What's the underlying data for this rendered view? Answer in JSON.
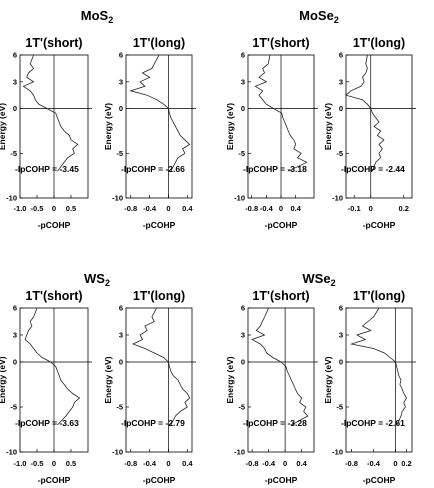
{
  "chart_data": {
    "type": "line",
    "y_axis_label": "Energy (eV)",
    "x_axis_label": "-pCOHP",
    "ylim": [
      -10,
      6
    ],
    "y_ticks": [
      "6",
      "3",
      "0",
      "-5",
      "-10"
    ],
    "materials": [
      {
        "name": "MoS",
        "subscript": "2",
        "panels": [
          {
            "title": "1T'(short)",
            "ipcohp_label": "-IpCOHP = -3.45",
            "xlim": [
              -1.0,
              1.0
            ],
            "x_ticks": [
              -1.0,
              -0.5,
              0,
              0.5
            ],
            "x_tick_labels": [
              "-1.0",
              "-0.5",
              "0",
              "0.5"
            ],
            "energy": [
              6,
              5,
              4.5,
              4,
              3.5,
              3,
              2.5,
              2,
              1.5,
              1,
              0.5,
              0,
              -0.5,
              -1,
              -1.5,
              -2,
              -2.5,
              -3,
              -3.5,
              -4,
              -4.5,
              -5,
              -5.5,
              -6,
              -7
            ],
            "pcohp": [
              -0.6,
              -0.7,
              -0.6,
              -0.75,
              -0.8,
              -0.6,
              -0.9,
              -0.7,
              -0.6,
              -0.55,
              -0.45,
              -0.2,
              0.05,
              0.1,
              0.15,
              0.2,
              0.3,
              0.45,
              0.5,
              0.7,
              0.55,
              0.6,
              0.4,
              0.3,
              0.1
            ]
          },
          {
            "title": "1T'(long)",
            "ipcohp_label": "-IpCOHP = -2.66",
            "xlim": [
              -0.9,
              0.5
            ],
            "x_ticks": [
              -0.8,
              -0.4,
              0,
              0.4
            ],
            "x_tick_labels": [
              "-0.8",
              "-0.4",
              "0",
              "0.4"
            ],
            "energy": [
              6,
              5,
              4.5,
              4,
              3.5,
              3,
              2.5,
              2,
              1.5,
              1,
              0.5,
              0,
              -0.5,
              -1,
              -1.5,
              -2,
              -2.5,
              -3,
              -3.5,
              -4,
              -4.5,
              -5,
              -5.5,
              -6,
              -7
            ],
            "pcohp": [
              -0.2,
              -0.3,
              -0.35,
              -0.55,
              -0.4,
              -0.6,
              -0.5,
              -0.8,
              -0.45,
              -0.25,
              -0.1,
              0.0,
              0.02,
              0.05,
              0.1,
              0.15,
              0.2,
              0.25,
              0.35,
              0.45,
              0.3,
              0.35,
              0.2,
              0.15,
              0.05
            ]
          }
        ]
      },
      {
        "name": "MoSe",
        "subscript": "2",
        "panels": [
          {
            "title": "1T'(short)",
            "ipcohp_label": "-IpCOHP = -3.18",
            "xlim": [
              -0.9,
              0.9
            ],
            "x_ticks": [
              -0.8,
              -0.4,
              0,
              0.4
            ],
            "x_tick_labels": [
              "-0.8",
              "-0.4",
              "0",
              "0.4"
            ],
            "energy": [
              6,
              5,
              4.5,
              4,
              3.5,
              3,
              2.5,
              2,
              1.5,
              1,
              0.5,
              0,
              -0.5,
              -1,
              -1.5,
              -2,
              -2.5,
              -3,
              -3.5,
              -4,
              -4.5,
              -5,
              -5.5,
              -6,
              -7
            ],
            "pcohp": [
              -0.3,
              -0.35,
              -0.5,
              -0.45,
              -0.6,
              -0.4,
              -0.7,
              -0.5,
              -0.6,
              -0.5,
              -0.4,
              -0.2,
              0.02,
              0.05,
              0.1,
              0.15,
              0.2,
              0.25,
              0.35,
              0.4,
              0.35,
              0.55,
              0.45,
              0.7,
              0.2
            ]
          },
          {
            "title": "1T'(long)",
            "ipcohp_label": "-IpCOHP = -2.44",
            "xlim": [
              -0.15,
              0.25
            ],
            "x_ticks": [
              -0.1,
              0,
              0.2
            ],
            "x_tick_labels": [
              "-0.1",
              "0",
              "0.2"
            ],
            "energy": [
              6,
              5,
              4.5,
              4,
              3.5,
              3,
              2.5,
              2,
              1.5,
              1,
              0.5,
              0,
              -0.5,
              -1,
              -1.5,
              -2,
              -2.5,
              -3,
              -3.5,
              -4,
              -4.5,
              -5,
              -5.5,
              -6,
              -7
            ],
            "pcohp": [
              -0.02,
              -0.03,
              -0.02,
              -0.03,
              -0.05,
              -0.04,
              -0.06,
              -0.12,
              -0.15,
              -0.05,
              -0.02,
              0.0,
              0.01,
              0.03,
              0.05,
              0.02,
              0.06,
              0.04,
              0.08,
              0.05,
              0.07,
              0.05,
              0.06,
              0.03,
              0.01
            ]
          }
        ]
      },
      {
        "name": "WS",
        "subscript": "2",
        "panels": [
          {
            "title": "1T'(short)",
            "ipcohp_label": "-IpCOHP = -3.63",
            "xlim": [
              -1.0,
              1.0
            ],
            "x_ticks": [
              -1.0,
              -0.5,
              0,
              0.5
            ],
            "x_tick_labels": [
              "-1.0",
              "-0.5",
              "0",
              "0.5"
            ],
            "energy": [
              6,
              5,
              4.5,
              4,
              3.5,
              3,
              2.5,
              2,
              1.5,
              1,
              0.5,
              0,
              -0.5,
              -1,
              -1.5,
              -2,
              -2.5,
              -3,
              -3.5,
              -4,
              -4.5,
              -5,
              -5.5,
              -6,
              -7
            ],
            "pcohp": [
              -0.5,
              -0.6,
              -0.7,
              -0.65,
              -0.75,
              -0.8,
              -0.85,
              -0.7,
              -0.6,
              -0.5,
              -0.35,
              -0.1,
              0.05,
              0.1,
              0.15,
              0.2,
              0.3,
              0.4,
              0.55,
              0.75,
              0.6,
              0.55,
              0.45,
              0.35,
              0.1
            ]
          },
          {
            "title": "1T'(long)",
            "ipcohp_label": "-IpCOHP = -2.79",
            "xlim": [
              -0.9,
              0.5
            ],
            "x_ticks": [
              -0.8,
              -0.4,
              0,
              0.4
            ],
            "x_tick_labels": [
              "-0.8",
              "-0.4",
              "0",
              "0.4"
            ],
            "energy": [
              6,
              5,
              4.5,
              4,
              3.5,
              3,
              2.5,
              2,
              1.5,
              1,
              0.5,
              0,
              -0.5,
              -1,
              -1.5,
              -2,
              -2.5,
              -3,
              -3.5,
              -4,
              -4.5,
              -5,
              -5.5,
              -6,
              -7
            ],
            "pcohp": [
              -0.25,
              -0.35,
              -0.3,
              -0.5,
              -0.45,
              -0.6,
              -0.55,
              -0.75,
              -0.5,
              -0.3,
              -0.1,
              0.0,
              0.02,
              0.05,
              0.1,
              0.2,
              0.25,
              0.3,
              0.4,
              0.45,
              0.35,
              0.4,
              0.25,
              0.15,
              0.05
            ]
          }
        ]
      },
      {
        "name": "WSe",
        "subscript": "2",
        "panels": [
          {
            "title": "1T'(short)",
            "ipcohp_label": "-IpCOHP = -3.28",
            "xlim": [
              -0.9,
              0.7
            ],
            "x_ticks": [
              -0.8,
              -0.4,
              0,
              0.4
            ],
            "x_tick_labels": [
              "-0.8",
              "-0.4",
              "0",
              "0.4"
            ],
            "energy": [
              6,
              5,
              4.5,
              4,
              3.5,
              3,
              2.5,
              2,
              1.5,
              1,
              0.5,
              0,
              -0.5,
              -1,
              -1.5,
              -2,
              -2.5,
              -3,
              -3.5,
              -4,
              -4.5,
              -5,
              -5.5,
              -6,
              -7
            ],
            "pcohp": [
              -0.4,
              -0.5,
              -0.55,
              -0.6,
              -0.7,
              -0.5,
              -0.8,
              -0.6,
              -0.5,
              -0.45,
              -0.3,
              -0.1,
              0.02,
              0.05,
              0.1,
              0.15,
              0.2,
              0.25,
              0.3,
              0.4,
              0.35,
              0.5,
              0.45,
              0.55,
              0.15
            ]
          },
          {
            "title": "1T'(long)",
            "ipcohp_label": "-IpCOHP = -2.61",
            "xlim": [
              -0.9,
              0.3
            ],
            "x_ticks": [
              -0.8,
              -0.4,
              0,
              0.2
            ],
            "x_tick_labels": [
              "-0.8",
              "-0.4",
              "0",
              "0.2"
            ],
            "energy": [
              6,
              5,
              4.5,
              4,
              3.5,
              3,
              2.5,
              2,
              1.5,
              1,
              0.5,
              0,
              -0.5,
              -1,
              -1.5,
              -2,
              -2.5,
              -3,
              -3.5,
              -4,
              -4.5,
              -5,
              -5.5,
              -6,
              -7
            ],
            "pcohp": [
              -0.3,
              -0.4,
              -0.5,
              -0.6,
              -0.45,
              -0.7,
              -0.55,
              -0.8,
              -0.4,
              -0.2,
              -0.1,
              0.0,
              0.02,
              0.04,
              0.06,
              0.1,
              0.08,
              0.12,
              0.15,
              0.2,
              0.15,
              0.18,
              0.12,
              0.1,
              0.03
            ]
          }
        ]
      }
    ]
  }
}
